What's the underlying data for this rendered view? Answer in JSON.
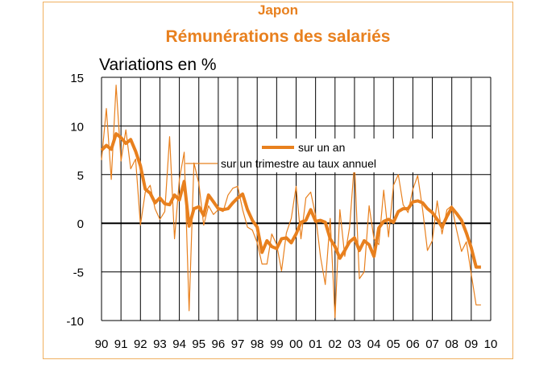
{
  "colors": {
    "line": "#e8801e",
    "frame": "#f0b060",
    "grid": "#000000"
  },
  "chart_data": {
    "type": "line",
    "title": "Japon",
    "subtitle": "Rémunérations des salariés",
    "ylabel": "Variations en %",
    "xlabel": "",
    "ylim": [
      -10,
      15
    ],
    "yticks": [
      15,
      10,
      5,
      0,
      -5,
      -10
    ],
    "xlim": [
      1990,
      2010
    ],
    "xtick_labels": [
      "90",
      "91",
      "92",
      "93",
      "94",
      "95",
      "96",
      "97",
      "98",
      "99",
      "00",
      "01",
      "02",
      "03",
      "04",
      "05",
      "06",
      "07",
      "08",
      "09",
      "10"
    ],
    "grid": true,
    "legend_position": "center-right",
    "series": [
      {
        "name": "sur un an",
        "style": "thick",
        "x": [
          1990.0,
          1990.25,
          1990.5,
          1990.75,
          1991.0,
          1991.25,
          1991.5,
          1991.75,
          1992.0,
          1992.25,
          1992.5,
          1992.75,
          1993.0,
          1993.25,
          1993.5,
          1993.75,
          1994.0,
          1994.25,
          1994.5,
          1994.75,
          1995.0,
          1995.25,
          1995.5,
          1995.75,
          1996.0,
          1996.25,
          1996.5,
          1996.75,
          1997.0,
          1997.25,
          1997.5,
          1997.75,
          1998.0,
          1998.25,
          1998.5,
          1998.75,
          1999.0,
          1999.25,
          1999.5,
          1999.75,
          2000.0,
          2000.25,
          2000.5,
          2000.75,
          2001.0,
          2001.25,
          2001.5,
          2001.75,
          2002.0,
          2002.25,
          2002.5,
          2002.75,
          2003.0,
          2003.25,
          2003.5,
          2003.75,
          2004.0,
          2004.25,
          2004.5,
          2004.75,
          2005.0,
          2005.25,
          2005.5,
          2005.75,
          2006.0,
          2006.25,
          2006.5,
          2006.75,
          2007.0,
          2007.25,
          2007.5,
          2007.75,
          2008.0,
          2008.25,
          2008.5,
          2008.75,
          2009.0,
          2009.25,
          2009.5
        ],
        "values": [
          7.5,
          8.0,
          7.6,
          9.2,
          8.8,
          8.2,
          8.6,
          7.4,
          5.9,
          3.5,
          3.1,
          2.1,
          2.6,
          2.0,
          1.9,
          2.9,
          2.4,
          4.3,
          -0.3,
          1.5,
          1.7,
          0.8,
          2.9,
          2.2,
          1.5,
          1.4,
          1.5,
          2.1,
          2.6,
          3.0,
          1.4,
          0.3,
          -0.4,
          -3.0,
          -1.8,
          -2.4,
          -2.6,
          -1.6,
          -1.5,
          -2.0,
          -1.1,
          0.1,
          0.3,
          1.4,
          0.2,
          0.3,
          0.1,
          -1.6,
          -2.4,
          -3.6,
          -2.8,
          -1.9,
          -1.5,
          -2.8,
          -1.8,
          -2.2,
          -3.4,
          -0.5,
          0.2,
          0.4,
          0.1,
          1.2,
          1.5,
          1.5,
          2.2,
          2.3,
          2.1,
          1.5,
          1.1,
          0.4,
          -0.4,
          0.7,
          1.6,
          1.0,
          0.3,
          -1.0,
          -2.5,
          -4.5,
          -4.5
        ]
      },
      {
        "name": "sur un trimestre au taux annuel",
        "style": "thin",
        "x": [
          1990.0,
          1990.25,
          1990.5,
          1990.75,
          1991.0,
          1991.25,
          1991.5,
          1991.75,
          1992.0,
          1992.25,
          1992.5,
          1992.75,
          1993.0,
          1993.25,
          1993.5,
          1993.75,
          1994.0,
          1994.25,
          1994.5,
          1994.75,
          1995.0,
          1995.25,
          1995.5,
          1995.75,
          1996.0,
          1996.25,
          1996.5,
          1996.75,
          1997.0,
          1997.25,
          1997.5,
          1997.75,
          1998.0,
          1998.25,
          1998.5,
          1998.75,
          1999.0,
          1999.25,
          1999.5,
          1999.75,
          2000.0,
          2000.25,
          2000.5,
          2000.75,
          2001.0,
          2001.25,
          2001.5,
          2001.75,
          2002.0,
          2002.25,
          2002.5,
          2002.75,
          2003.0,
          2003.25,
          2003.5,
          2003.75,
          2004.0,
          2004.25,
          2004.5,
          2004.75,
          2005.0,
          2005.25,
          2005.5,
          2005.75,
          2006.0,
          2006.25,
          2006.5,
          2006.75,
          2007.0,
          2007.25,
          2007.5,
          2007.75,
          2008.0,
          2008.25,
          2008.5,
          2008.75,
          2009.0,
          2009.25,
          2009.5
        ],
        "values": [
          6.5,
          11.8,
          4.5,
          14.2,
          6.4,
          9.6,
          5.6,
          6.6,
          -0.2,
          3.2,
          3.9,
          1.5,
          0.4,
          1.2,
          8.9,
          -1.6,
          4.5,
          7.3,
          -9.0,
          6.2,
          4.1,
          -0.2,
          1.8,
          0.9,
          1.4,
          1.2,
          2.9,
          3.6,
          3.8,
          1.4,
          -0.4,
          -0.7,
          -2.0,
          -4.2,
          -4.2,
          -1.1,
          -2.2,
          -4.9,
          -1.0,
          0.5,
          3.8,
          -1.6,
          2.6,
          3.2,
          0.8,
          -3.4,
          -6.3,
          0.5,
          -9.7,
          1.4,
          -3.4,
          -0.4,
          6.3,
          -5.7,
          -5.0,
          1.8,
          -1.6,
          -2.2,
          3.4,
          -1.4,
          3.9,
          5.0,
          1.9,
          1.1,
          3.5,
          4.9,
          1.4,
          -2.8,
          -1.8,
          2.3,
          -1.1,
          1.4,
          1.8,
          -0.7,
          -2.9,
          -1.9,
          -5.2,
          -8.4,
          -8.4
        ]
      }
    ]
  }
}
